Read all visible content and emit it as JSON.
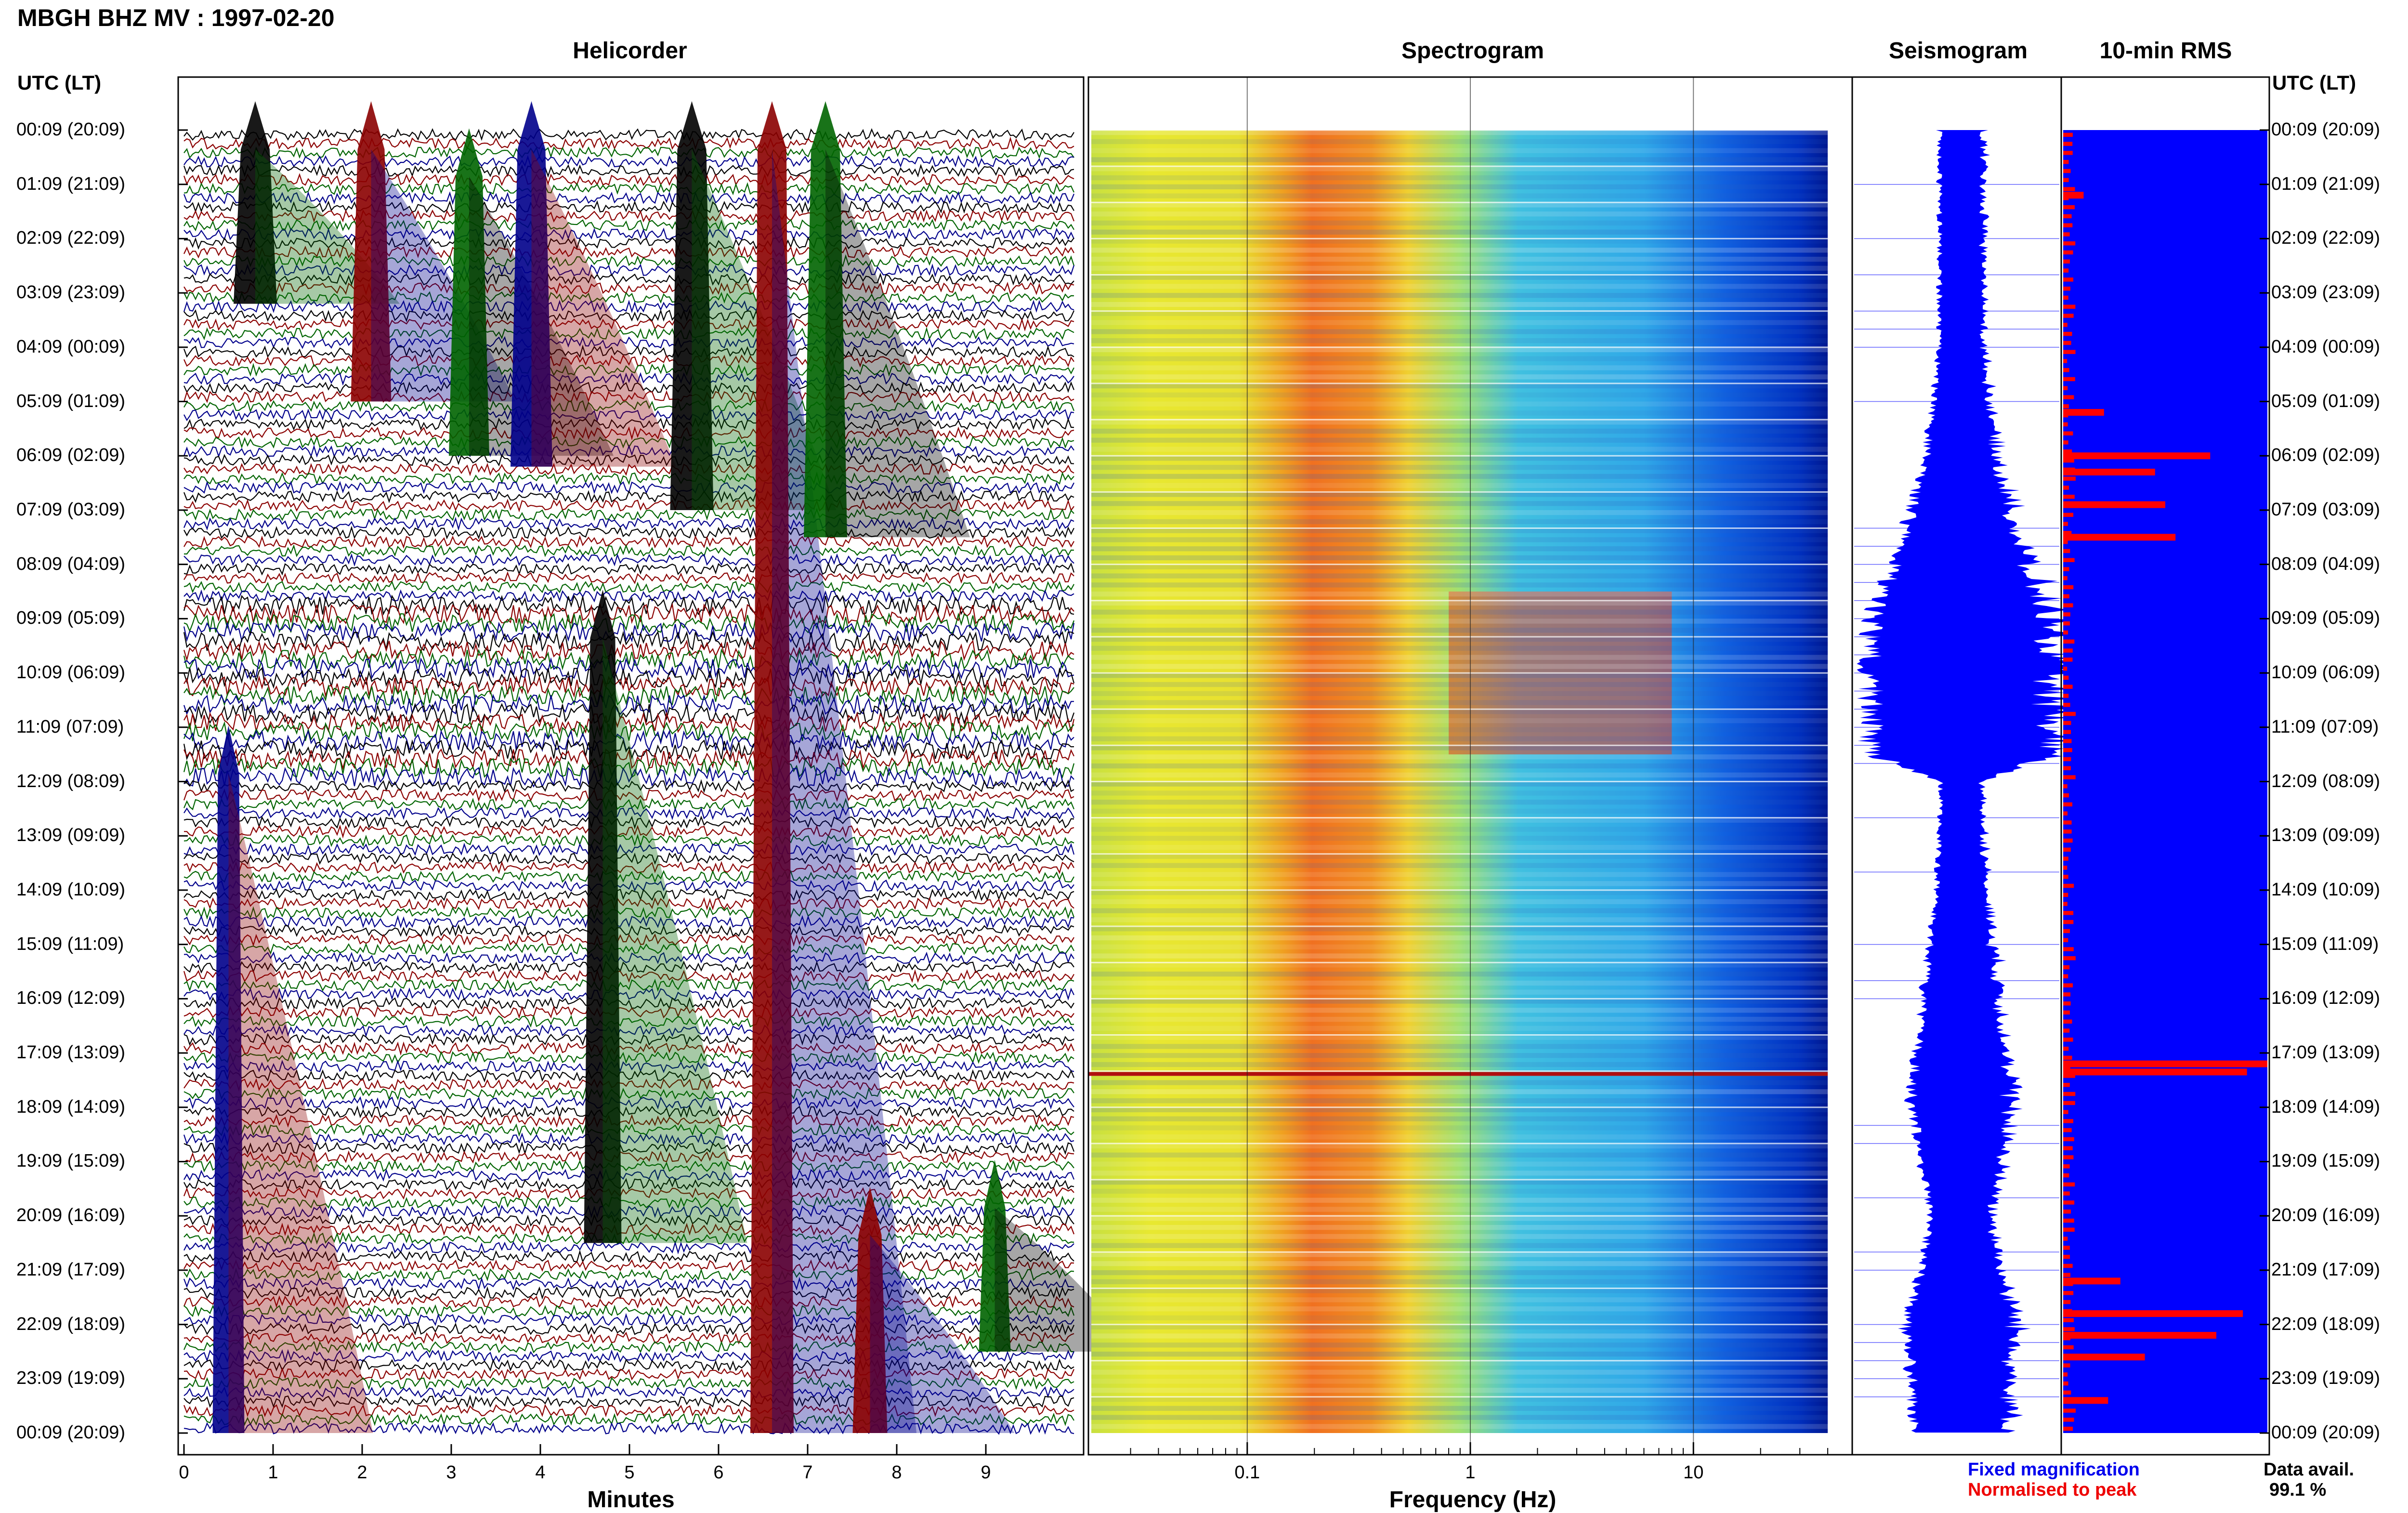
{
  "header": {
    "station_title": "MBGH BHZ MV : 1997-02-20",
    "panel_titles": {
      "helicorder": "Helicorder",
      "spectrogram": "Spectrogram",
      "seismogram": "Seismogram",
      "rms": "10-min RMS"
    },
    "utc_label_left": "UTC (LT)",
    "utc_label_right": "UTC (LT)"
  },
  "time_labels": [
    "00:09 (20:09)",
    "01:09 (21:09)",
    "02:09 (22:09)",
    "03:09 (23:09)",
    "04:09 (00:09)",
    "05:09 (01:09)",
    "06:09 (02:09)",
    "07:09 (03:09)",
    "08:09 (04:09)",
    "09:09 (05:09)",
    "10:09 (06:09)",
    "11:09 (07:09)",
    "12:09 (08:09)",
    "13:09 (09:09)",
    "14:09 (10:09)",
    "15:09 (11:09)",
    "16:09 (12:09)",
    "17:09 (13:09)",
    "18:09 (14:09)",
    "19:09 (15:09)",
    "20:09 (16:09)",
    "21:09 (17:09)",
    "22:09 (18:09)",
    "23:09 (19:09)",
    "00:09 (20:09)"
  ],
  "footer": {
    "legend_fixed": "Fixed magnification",
    "legend_normalised": "Normalised to peak",
    "data_avail_label": "Data avail.",
    "data_avail_value": "99.1 %"
  },
  "colors": {
    "helicorder_traces": [
      "#000000",
      "#8b0000",
      "#006400",
      "#00008b"
    ],
    "seismogram": "#0000ff",
    "rms_fixed": "#0000ff",
    "rms_normalised": "#ff0000"
  },
  "chart_data": [
    {
      "type": "line",
      "panel": "helicorder",
      "title": "Helicorder",
      "xlabel": "Minutes",
      "xticks": [
        "0",
        "1",
        "2",
        "3",
        "4",
        "5",
        "6",
        "7",
        "8",
        "9"
      ],
      "xlim": [
        0,
        10
      ],
      "rows": 144,
      "row_minutes": 10,
      "events": [
        {
          "minute": 0.8,
          "hour_start": 0.0,
          "hour_end": 3.2,
          "amplitude": 1.0
        },
        {
          "minute": 2.1,
          "hour_start": 0.0,
          "hour_end": 5.0,
          "amplitude": 0.9
        },
        {
          "minute": 3.2,
          "hour_start": 0.5,
          "hour_end": 6.0,
          "amplitude": 0.9
        },
        {
          "minute": 3.9,
          "hour_start": 0.0,
          "hour_end": 6.2,
          "amplitude": 0.95
        },
        {
          "minute": 5.7,
          "hour_start": 0.0,
          "hour_end": 7.0,
          "amplitude": 1.0
        },
        {
          "minute": 6.6,
          "hour_start": 0.0,
          "hour_end": 24.0,
          "amplitude": 1.0
        },
        {
          "minute": 7.2,
          "hour_start": 0.0,
          "hour_end": 7.5,
          "amplitude": 1.0
        },
        {
          "minute": 0.5,
          "hour_start": 11.5,
          "hour_end": 24.0,
          "amplitude": 0.6
        },
        {
          "minute": 4.7,
          "hour_start": 9.0,
          "hour_end": 20.5,
          "amplitude": 0.8
        },
        {
          "minute": 7.7,
          "hour_start": 20.0,
          "hour_end": 24.0,
          "amplitude": 0.7
        },
        {
          "minute": 9.1,
          "hour_start": 19.5,
          "hour_end": 22.5,
          "amplitude": 0.6
        }
      ]
    },
    {
      "type": "heatmap",
      "panel": "spectrogram",
      "title": "Spectrogram",
      "xlabel": "Frequency (Hz)",
      "xscale": "log",
      "xticks": [
        "0.1",
        "1",
        "10"
      ],
      "xlim": [
        0.02,
        50
      ],
      "colormap": "jet",
      "dominant_band_hz": [
        0.15,
        0.5
      ],
      "harmonic_band": {
        "hz": [
          0.8,
          8
        ],
        "hour_start": 8.5,
        "hour_end": 11.5
      }
    },
    {
      "type": "line",
      "panel": "seismogram",
      "title": "Seismogram",
      "note": "quiet intervals narrow the trace envelope",
      "envelope": [
        {
          "hour": 0,
          "half_width": 0.22
        },
        {
          "hour": 4,
          "half_width": 0.22
        },
        {
          "hour": 6,
          "half_width": 0.35
        },
        {
          "hour": 8,
          "half_width": 0.65
        },
        {
          "hour": 9,
          "half_width": 0.9
        },
        {
          "hour": 11.5,
          "half_width": 0.9
        },
        {
          "hour": 12,
          "half_width": 0.2
        },
        {
          "hour": 14,
          "half_width": 0.25
        },
        {
          "hour": 17,
          "half_width": 0.45
        },
        {
          "hour": 18,
          "half_width": 0.5
        },
        {
          "hour": 20,
          "half_width": 0.3
        },
        {
          "hour": 21,
          "half_width": 0.4
        },
        {
          "hour": 22,
          "half_width": 0.55
        },
        {
          "hour": 24,
          "half_width": 0.45
        }
      ]
    },
    {
      "type": "bar",
      "panel": "rms",
      "title": "10-min RMS",
      "orientation": "horizontal",
      "series": [
        {
          "name": "Fixed magnification",
          "fill_fraction_all_rows": 1.0
        },
        {
          "name": "Normalised to peak",
          "peaks": [
            {
              "hour": 1.2,
              "value": 0.1
            },
            {
              "hour": 5.2,
              "value": 0.2
            },
            {
              "hour": 6.0,
              "value": 0.72
            },
            {
              "hour": 6.3,
              "value": 0.45
            },
            {
              "hour": 6.9,
              "value": 0.5
            },
            {
              "hour": 7.5,
              "value": 0.55
            },
            {
              "hour": 17.2,
              "value": 1.0
            },
            {
              "hour": 17.35,
              "value": 0.9
            },
            {
              "hour": 21.2,
              "value": 0.28
            },
            {
              "hour": 21.8,
              "value": 0.88
            },
            {
              "hour": 22.2,
              "value": 0.75
            },
            {
              "hour": 22.6,
              "value": 0.4
            },
            {
              "hour": 23.4,
              "value": 0.22
            }
          ]
        }
      ]
    }
  ]
}
